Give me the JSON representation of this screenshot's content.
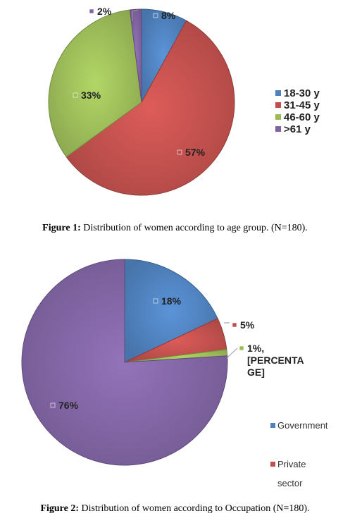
{
  "chart_data": [
    {
      "type": "pie",
      "categories": [
        "18-30 y",
        "31-45 y",
        "46-60 y",
        ">61 y"
      ],
      "values": [
        8,
        57,
        33,
        2
      ],
      "data_labels": [
        "8%",
        "57%",
        "33%",
        "2%"
      ],
      "colors": [
        "#4f81bd",
        "#c0504d",
        "#9bbb59",
        "#8064a2"
      ],
      "legend": "right",
      "caption_prefix": "Figure 1:",
      "caption": "Distribution of women according to age group. (N=180)."
    },
    {
      "type": "pie",
      "categories": [
        "Government",
        "Private sector",
        "",
        ""
      ],
      "values": [
        18,
        5,
        1,
        76
      ],
      "data_labels": [
        "18%",
        "5%",
        "1%, [PERCENTA GE]",
        "76%"
      ],
      "colors": [
        "#4f81bd",
        "#c0504d",
        "#9bbb59",
        "#8064a2"
      ],
      "legend": "right",
      "caption_prefix": "Figure 2:",
      "caption": "Distribution of women according to Occupation (N=180)."
    }
  ]
}
